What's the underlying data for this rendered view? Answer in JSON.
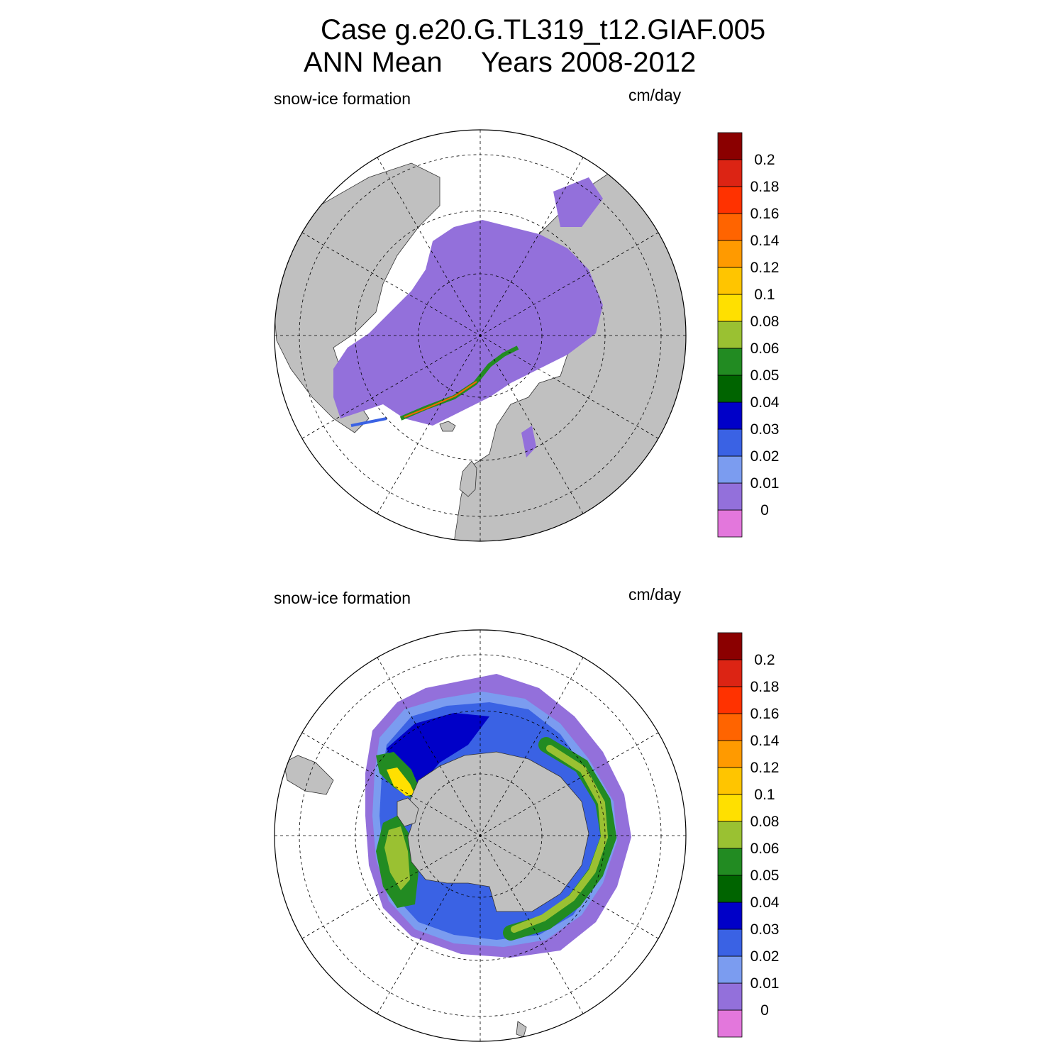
{
  "header": {
    "title_line1": "Case g.e20.G.TL319_t12.GIAF.005",
    "title_period": "ANN Mean",
    "title_years": "Years 2008-2012"
  },
  "colors": {
    "land": "#c0c0c0",
    "ocean_no_data": "#ffffff",
    "grid_line": "#000000"
  },
  "colorbar": {
    "unit": "cm/day",
    "levels": [
      "0",
      "0.01",
      "0.02",
      "0.03",
      "0.04",
      "0.05",
      "0.06",
      "0.08",
      "0.1",
      "0.12",
      "0.14",
      "0.16",
      "0.18",
      "0.2"
    ],
    "colors": [
      "#e377dc",
      "#9370db",
      "#7b9cf0",
      "#3a62e4",
      "#0000c8",
      "#006400",
      "#228b22",
      "#9ac132",
      "#ffe000",
      "#ffc500",
      "#ff9a00",
      "#ff6400",
      "#ff3200",
      "#dc2414",
      "#8b0000"
    ]
  },
  "panels": [
    {
      "id": "north",
      "variable_label": "snow-ice formation",
      "unit_label": "cm/day",
      "hemisphere": "Northern Hemisphere polar stereographic"
    },
    {
      "id": "south",
      "variable_label": "snow-ice formation",
      "unit_label": "cm/day",
      "hemisphere": "Southern Hemisphere polar stereographic"
    }
  ]
}
